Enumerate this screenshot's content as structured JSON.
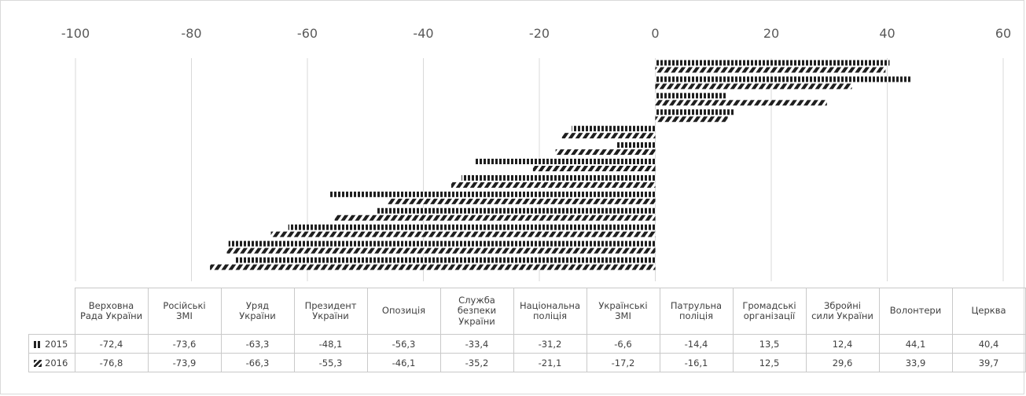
{
  "chart_data": {
    "type": "bar",
    "orientation": "horizontal",
    "title": "",
    "xlim": [
      -100,
      60
    ],
    "x_ticks": [
      "-100",
      "-80",
      "-60",
      "-40",
      "-20",
      "0",
      "20",
      "40",
      "60"
    ],
    "grid": true,
    "legend_placement": "data-table",
    "categories": [
      "Верховна Рада України",
      "Російські ЗМІ",
      "Уряд України",
      "Президент України",
      "Опозиція",
      "Служба безпеки України",
      "Національна поліція",
      "Українські ЗМІ",
      "Патрульна поліція",
      "Громадські організації",
      "Збройні сили України",
      "Волонтери",
      "Церква"
    ],
    "series": [
      {
        "name": "2015",
        "values": [
          -72.4,
          -73.6,
          -63.3,
          -48.1,
          -56.3,
          -33.4,
          -31.2,
          -6.6,
          -14.4,
          13.5,
          12.4,
          44.1,
          40.4
        ],
        "labels": [
          "-72,4",
          "-73,6",
          "-63,3",
          "-48,1",
          "-56,3",
          "-33,4",
          "-31,2",
          "-6,6",
          "-14,4",
          "13,5",
          "12,4",
          "44,1",
          "40,4"
        ]
      },
      {
        "name": "2016",
        "values": [
          -76.8,
          -73.9,
          -66.3,
          -55.3,
          -46.1,
          -35.2,
          -21.1,
          -17.2,
          -16.1,
          12.5,
          29.6,
          33.9,
          39.7
        ],
        "labels": [
          "-76,8",
          "-73,9",
          "-66,3",
          "-55,3",
          "-46,1",
          "-35,2",
          "-21,1",
          "-17,2",
          "-16,1",
          "12,5",
          "29,6",
          "33,9",
          "39,7"
        ]
      }
    ],
    "series_colors": {
      "2015": "#1f1f1f",
      "2016": "#1f1f1f"
    }
  },
  "table": {
    "header_cells": [
      "Верховна\nРада України",
      "Російські\nЗМІ",
      "Уряд\nУкраїни",
      "Президент\nУкраїни",
      "Опозиція",
      "Служба\nбезпеки\nУкраїни",
      "Національна\nполіція",
      "Українські\nЗМІ",
      "Патрульна\nполіція",
      "Громадські\nорганізації",
      "Збройні\nсили України",
      "Волонтери",
      "Церква"
    ],
    "row_labels": [
      "2015",
      "2016"
    ]
  }
}
